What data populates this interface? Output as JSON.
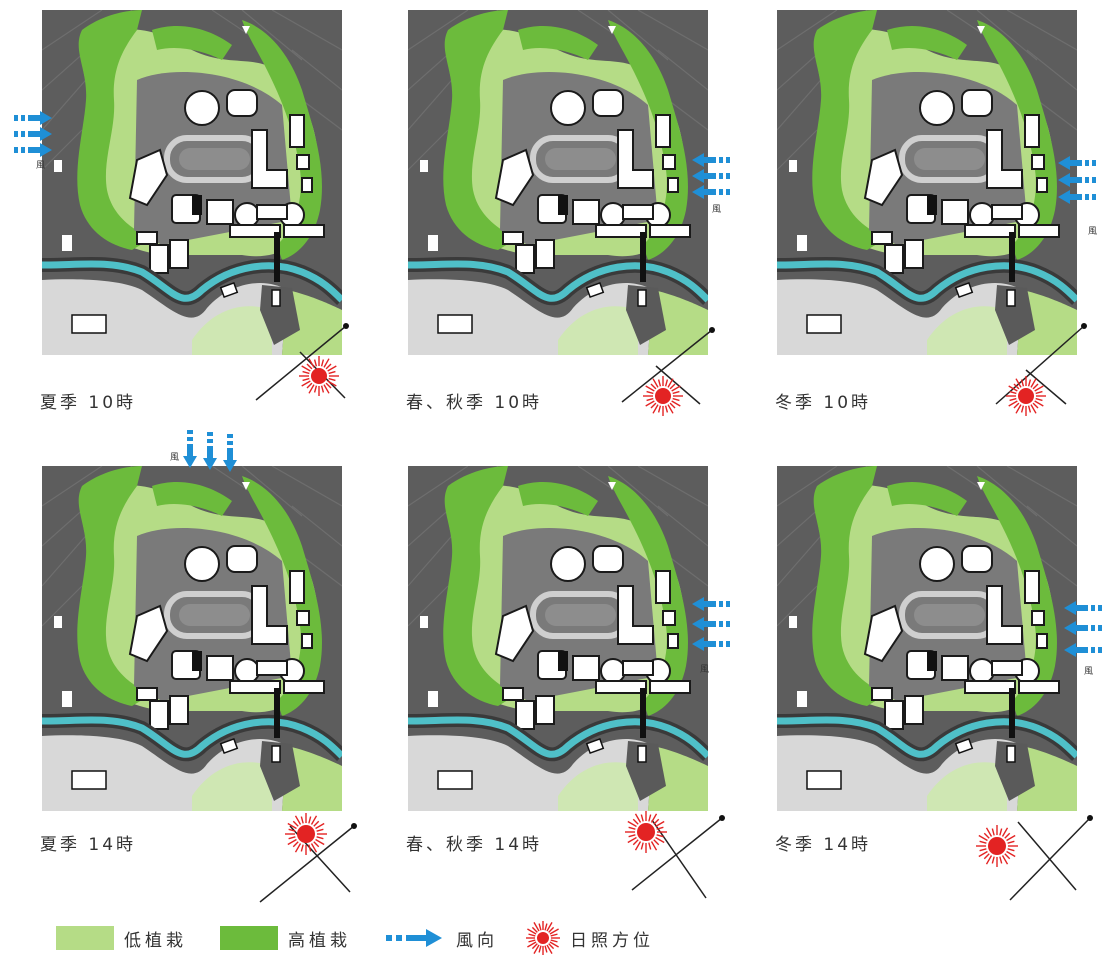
{
  "colors": {
    "low_planting": "#b5dc86",
    "high_planting": "#6cbb3c",
    "river": "#4fc0c8",
    "wind": "#1f8fd6",
    "sun": "#e32323"
  },
  "panels": [
    {
      "caption": "夏季 10時",
      "wind_label": "風",
      "wind_side": "left",
      "sun_side": "right"
    },
    {
      "caption": "春、秋季 10時",
      "wind_label": "風",
      "wind_side": "right",
      "sun_side": "center"
    },
    {
      "caption": "冬季 10時",
      "wind_label": "風",
      "wind_side": "right",
      "sun_side": "center"
    },
    {
      "caption": "夏季 14時",
      "wind_label": "風",
      "wind_side": "top",
      "sun_side": "left"
    },
    {
      "caption": "春、秋季 14時",
      "wind_label": "風",
      "wind_side": "right",
      "sun_side": "left"
    },
    {
      "caption": "冬季 14時",
      "wind_label": "風",
      "wind_side": "right",
      "sun_side": "left"
    }
  ],
  "legend": {
    "low_planting": "低植栽",
    "high_planting": "高植栽",
    "wind": "風向",
    "sun": "日照方位"
  }
}
